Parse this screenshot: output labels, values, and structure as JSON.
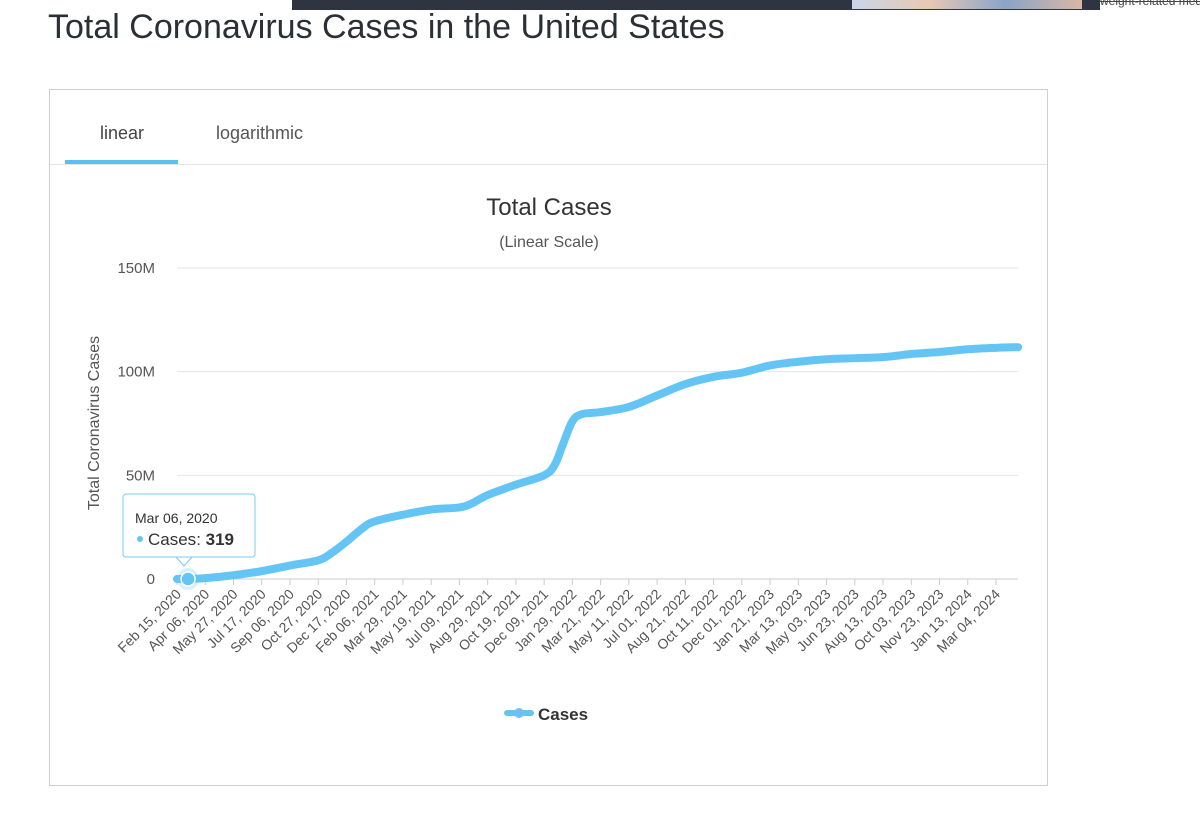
{
  "page": {
    "title": "Total Coronavirus Cases in the United States",
    "top_snippet": "weight-related medical pro"
  },
  "tabs": [
    {
      "label": "linear",
      "active": true
    },
    {
      "label": "logarithmic",
      "active": false
    }
  ],
  "tooltip": {
    "date": "Mar 06, 2020",
    "series_name": "Cases",
    "value_label": "319"
  },
  "colors": {
    "series": "#64c5f4",
    "grid": "#e6e6e6",
    "axis": "#cccccc"
  },
  "chart_data": {
    "type": "line",
    "title": "Total Cases",
    "subtitle": "(Linear Scale)",
    "ylabel": "Total Coronavirus Cases",
    "ylim": [
      0,
      150000000
    ],
    "y_ticks": [
      {
        "value": 0,
        "label": "0"
      },
      {
        "value": 50000000,
        "label": "50M"
      },
      {
        "value": 100000000,
        "label": "100M"
      },
      {
        "value": 150000000,
        "label": "150M"
      }
    ],
    "x_ticks": [
      "Feb 15, 2020",
      "Apr 06, 2020",
      "May 27, 2020",
      "Jul 17, 2020",
      "Sep 06, 2020",
      "Oct 27, 2020",
      "Dec 17, 2020",
      "Feb 06, 2021",
      "Mar 29, 2021",
      "May 19, 2021",
      "Jul 09, 2021",
      "Aug 29, 2021",
      "Oct 19, 2021",
      "Dec 09, 2021",
      "Jan 29, 2022",
      "Mar 21, 2022",
      "May 11, 2022",
      "Jul 01, 2022",
      "Aug 21, 2022",
      "Oct 11, 2022",
      "Dec 01, 2022",
      "Jan 21, 2023",
      "Mar 13, 2023",
      "May 03, 2023",
      "Jun 23, 2023",
      "Aug 13, 2023",
      "Oct 03, 2023",
      "Nov 23, 2023",
      "Jan 13, 2024",
      "Mar 04, 2024"
    ],
    "legend": {
      "position": "bottom-center",
      "entries": [
        "Cases"
      ]
    },
    "grid": true,
    "series": [
      {
        "name": "Cases",
        "points": [
          [
            "Feb 15, 2020",
            0
          ],
          [
            "Mar 06, 2020",
            319
          ],
          [
            "Apr 06, 2020",
            400000
          ],
          [
            "May 27, 2020",
            1800000
          ],
          [
            "Jul 17, 2020",
            3800000
          ],
          [
            "Sep 06, 2020",
            6500000
          ],
          [
            "Oct 27, 2020",
            9000000
          ],
          [
            "Nov 20, 2020",
            12500000
          ],
          [
            "Dec 17, 2020",
            18000000
          ],
          [
            "Jan 15, 2021",
            24500000
          ],
          [
            "Feb 06, 2021",
            27800000
          ],
          [
            "Mar 29, 2021",
            31000000
          ],
          [
            "May 19, 2021",
            33500000
          ],
          [
            "Jul 09, 2021",
            34500000
          ],
          [
            "Aug 01, 2021",
            36500000
          ],
          [
            "Aug 29, 2021",
            40500000
          ],
          [
            "Oct 19, 2021",
            45500000
          ],
          [
            "Dec 09, 2021",
            50000000
          ],
          [
            "Dec 28, 2021",
            55000000
          ],
          [
            "Jan 12, 2022",
            65000000
          ],
          [
            "Jan 29, 2022",
            76000000
          ],
          [
            "Feb 15, 2022",
            79500000
          ],
          [
            "Mar 21, 2022",
            80500000
          ],
          [
            "May 11, 2022",
            83000000
          ],
          [
            "Jul 01, 2022",
            88500000
          ],
          [
            "Aug 21, 2022",
            94000000
          ],
          [
            "Oct 11, 2022",
            97500000
          ],
          [
            "Dec 01, 2022",
            99500000
          ],
          [
            "Jan 21, 2023",
            103000000
          ],
          [
            "Mar 13, 2023",
            104800000
          ],
          [
            "May 03, 2023",
            106000000
          ],
          [
            "Jun 23, 2023",
            106500000
          ],
          [
            "Aug 13, 2023",
            107000000
          ],
          [
            "Oct 03, 2023",
            108500000
          ],
          [
            "Nov 23, 2023",
            109500000
          ],
          [
            "Jan 13, 2024",
            110800000
          ],
          [
            "Mar 04, 2024",
            111500000
          ],
          [
            "Apr 13, 2024",
            111800000
          ]
        ]
      }
    ]
  }
}
